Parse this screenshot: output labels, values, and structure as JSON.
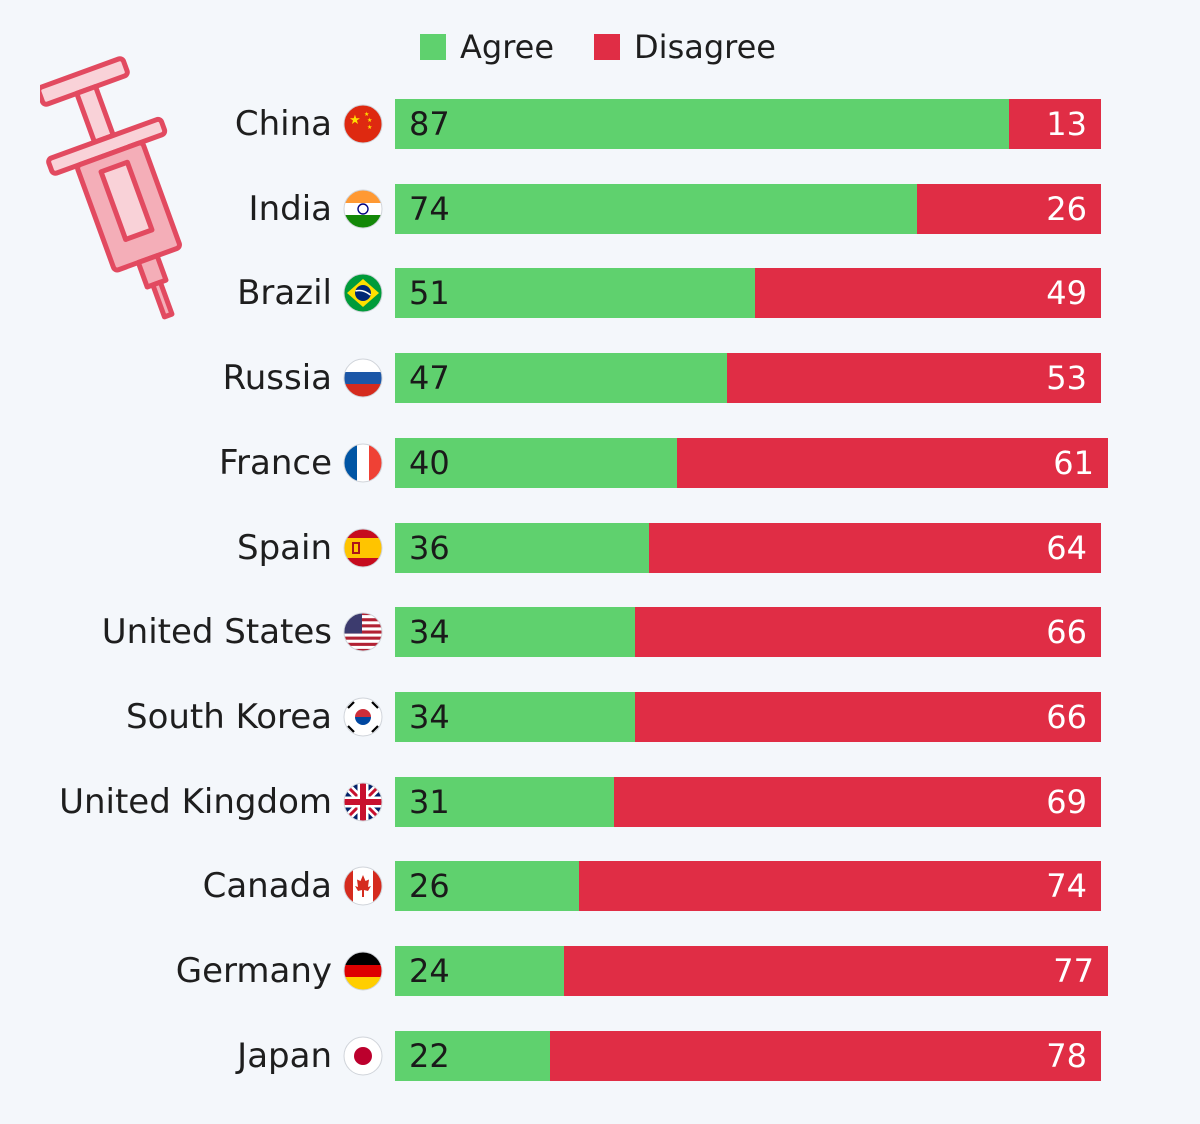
{
  "chart_data": {
    "type": "bar",
    "orientation": "horizontal",
    "stacked": true,
    "categories": [
      "China",
      "India",
      "Brazil",
      "Russia",
      "France",
      "Spain",
      "United States",
      "South Korea",
      "United Kingdom",
      "Canada",
      "Germany",
      "Japan"
    ],
    "flag_icons": [
      "china-flag-icon",
      "india-flag-icon",
      "brazil-flag-icon",
      "russia-flag-icon",
      "france-flag-icon",
      "spain-flag-icon",
      "united-states-flag-icon",
      "south-korea-flag-icon",
      "united-kingdom-flag-icon",
      "canada-flag-icon",
      "germany-flag-icon",
      "japan-flag-icon"
    ],
    "series": [
      {
        "name": "Agree",
        "color": "#5fd16e",
        "values": [
          87,
          74,
          51,
          47,
          40,
          36,
          34,
          34,
          31,
          26,
          24,
          22
        ]
      },
      {
        "name": "Disagree",
        "color": "#e02d45",
        "values": [
          13,
          26,
          49,
          53,
          61,
          64,
          66,
          66,
          69,
          74,
          77,
          78
        ]
      }
    ],
    "legend_position": "top",
    "grid": false,
    "xlim": [
      0,
      100
    ],
    "decoration_icon": "syringe-icon"
  }
}
